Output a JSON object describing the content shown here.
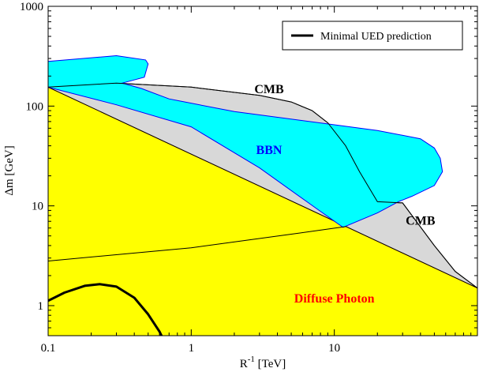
{
  "chart_data": {
    "type": "area",
    "xscale": "log",
    "yscale": "log",
    "xlim": [
      0.1,
      100
    ],
    "ylim": [
      0.5,
      1000
    ],
    "xlabel_main": "R",
    "xlabel_sup": "-1",
    "xlabel_unit": "[TeV]",
    "ylabel": "Δm  [GeV]",
    "xticks": [
      {
        "value": 0.1,
        "label": "0.1"
      },
      {
        "value": 1,
        "label": "1"
      },
      {
        "value": 10,
        "label": "10"
      }
    ],
    "yticks": [
      {
        "value": 1,
        "label": "1"
      },
      {
        "value": 10,
        "label": "10"
      },
      {
        "value": 100,
        "label": "100"
      },
      {
        "value": 1000,
        "label": "1000"
      }
    ],
    "colors": {
      "diffuse_fill": "#ffff00",
      "diffuse_edge": "#ff0000",
      "bbn_fill": "#00ffff",
      "bbn_edge": "#0000ff",
      "cmb_fill": "#d8d8d8",
      "cmb_edge": "#000000",
      "bbn_label": "#0000ff",
      "cmb_label": "#000000",
      "diffuse_label": "#ff0000"
    },
    "regions": [
      {
        "name": "Diffuse Photon",
        "fill": "#ffff00",
        "edge": "#ff0000",
        "points": [
          [
            0.1,
            0.5
          ],
          [
            0.1,
            155
          ],
          [
            100,
            1.5
          ],
          [
            100,
            0.5
          ]
        ]
      },
      {
        "name": "CMB",
        "fill": "#d8d8d8",
        "edge": "#000000",
        "points": [
          [
            0.1,
            155
          ],
          [
            0.3,
            170
          ],
          [
            1,
            155
          ],
          [
            3,
            128
          ],
          [
            5,
            110
          ],
          [
            7,
            90
          ],
          [
            9,
            68
          ],
          [
            12,
            40
          ],
          [
            15,
            22
          ],
          [
            20,
            11
          ],
          [
            30,
            10.7
          ],
          [
            50,
            4
          ],
          [
            70,
            2.2
          ],
          [
            100,
            1.5
          ]
        ]
      },
      {
        "name": "BBN",
        "fill": "#00ffff",
        "edge": "#0000ff",
        "points": [
          [
            0.1,
            155
          ],
          [
            0.1,
            280
          ],
          [
            0.3,
            320
          ],
          [
            0.48,
            290
          ],
          [
            0.5,
            265
          ],
          [
            0.47,
            195
          ],
          [
            0.33,
            170
          ],
          [
            0.45,
            150
          ],
          [
            0.7,
            118
          ],
          [
            2,
            88
          ],
          [
            10,
            65
          ],
          [
            20,
            57
          ],
          [
            40,
            47
          ],
          [
            50,
            38
          ],
          [
            55,
            30
          ],
          [
            57,
            22
          ],
          [
            50,
            16
          ],
          [
            35,
            12.5
          ],
          [
            28,
            11
          ],
          [
            20,
            8.5
          ],
          [
            11.5,
            6.1
          ],
          [
            7.5,
            9.4
          ],
          [
            3,
            24
          ],
          [
            1,
            62
          ],
          [
            0.3,
            103
          ]
        ]
      }
    ],
    "series": [
      {
        "name": "CMB boundary (upper)",
        "color": "#000000",
        "points": [
          [
            0.1,
            155
          ],
          [
            0.3,
            170
          ],
          [
            1,
            155
          ],
          [
            3,
            128
          ],
          [
            5,
            110
          ],
          [
            7,
            90
          ],
          [
            9,
            68
          ],
          [
            12,
            40
          ],
          [
            15,
            22
          ],
          [
            20,
            11
          ],
          [
            30,
            10.7
          ],
          [
            50,
            4
          ],
          [
            70,
            2.2
          ],
          [
            100,
            1.5
          ]
        ]
      },
      {
        "name": "CMB boundary (lower)",
        "color": "#000000",
        "points": [
          [
            0.1,
            2.8
          ],
          [
            1,
            3.8
          ],
          [
            5,
            5.2
          ],
          [
            12,
            6.2
          ]
        ]
      },
      {
        "name": "Minimal UED prediction",
        "color": "#000000",
        "width": 3,
        "points": [
          [
            0.1,
            1.12
          ],
          [
            0.13,
            1.35
          ],
          [
            0.18,
            1.58
          ],
          [
            0.23,
            1.64
          ],
          [
            0.3,
            1.55
          ],
          [
            0.4,
            1.2
          ],
          [
            0.5,
            0.82
          ],
          [
            0.6,
            0.55
          ],
          [
            0.62,
            0.5
          ]
        ]
      }
    ],
    "annotations": [
      {
        "text": "CMB",
        "x": 3.5,
        "y": 135,
        "color": "#000000"
      },
      {
        "text": "BBN",
        "x": 3.5,
        "y": 33,
        "color": "#0000ff"
      },
      {
        "text": "CMB",
        "x": 40,
        "y": 6.5,
        "color": "#000000"
      },
      {
        "text": "Diffuse Photon",
        "x": 10,
        "y": 1.08,
        "color": "#ff0000"
      }
    ],
    "legend": {
      "position": "top-right",
      "entries": [
        {
          "label": "Minimal UED prediction",
          "color": "#000000"
        }
      ]
    }
  }
}
